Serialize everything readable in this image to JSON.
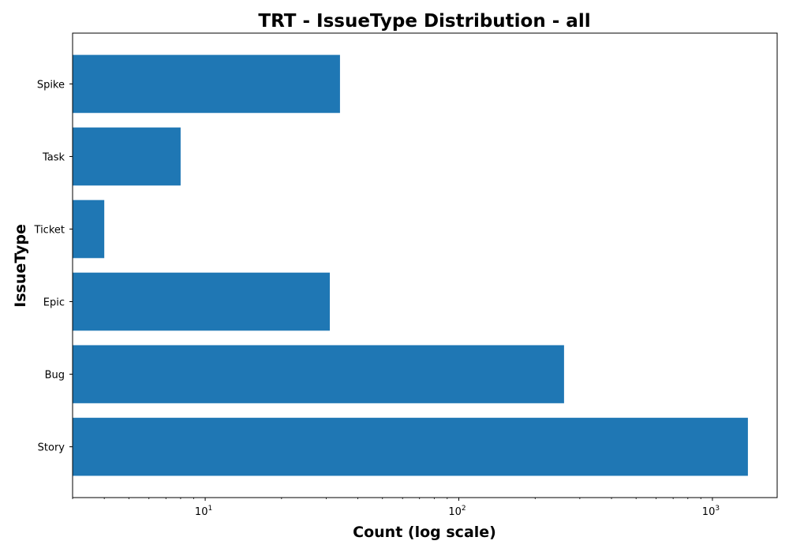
{
  "chart_data": {
    "type": "bar",
    "orientation": "horizontal",
    "title": "TRT - IssueType Distribution - all",
    "xlabel": "Count (log scale)",
    "ylabel": "IssueType",
    "x_scale": "log",
    "xlim": [
      3,
      1800
    ],
    "x_ticks": [
      {
        "value": 10,
        "base": "10",
        "exp": "1"
      },
      {
        "value": 100,
        "base": "10",
        "exp": "2"
      },
      {
        "value": 1000,
        "base": "10",
        "exp": "3"
      }
    ],
    "categories": [
      "Story",
      "Bug",
      "Epic",
      "Ticket",
      "Task",
      "Spike"
    ],
    "values": [
      1380,
      260,
      31,
      4,
      8,
      34
    ],
    "bar_color": "#1f77b4",
    "grid": false,
    "legend": "none"
  }
}
